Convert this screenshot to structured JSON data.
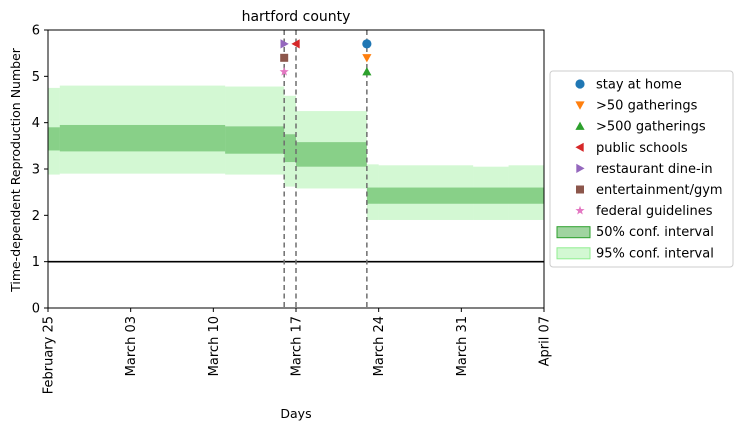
{
  "chart_data": {
    "type": "line",
    "title": "hartford county",
    "xlabel": "Days",
    "ylabel": "Time-dependent Reproduction Number",
    "x_ticks": [
      {
        "day": 0,
        "label": "February 25"
      },
      {
        "day": 7,
        "label": "March 03"
      },
      {
        "day": 14,
        "label": "March 10"
      },
      {
        "day": 21,
        "label": "March 17"
      },
      {
        "day": 28,
        "label": "March 24"
      },
      {
        "day": 35,
        "label": "March 31"
      },
      {
        "day": 42,
        "label": "April 07"
      }
    ],
    "xlim": [
      0,
      42
    ],
    "ylim": [
      0,
      6
    ],
    "y_ticks": [
      0,
      1,
      2,
      3,
      4,
      5,
      6
    ],
    "reference_line": {
      "y": 1,
      "color": "#000000"
    },
    "ci50": {
      "label": "50% conf. interval",
      "color": "#2ca02c",
      "segments": [
        {
          "x0": 0,
          "x1": 1,
          "lo": 3.4,
          "hi": 3.9
        },
        {
          "x0": 1,
          "x1": 15,
          "lo": 3.38,
          "hi": 3.95
        },
        {
          "x0": 15,
          "x1": 20,
          "lo": 3.33,
          "hi": 3.92
        },
        {
          "x0": 20,
          "x1": 21,
          "lo": 3.15,
          "hi": 3.75
        },
        {
          "x0": 21,
          "x1": 27,
          "lo": 3.05,
          "hi": 3.58
        },
        {
          "x0": 27,
          "x1": 42,
          "lo": 2.25,
          "hi": 2.6
        }
      ]
    },
    "ci95": {
      "label": "95% conf. interval",
      "color": "#90ee90",
      "segments": [
        {
          "x0": 0,
          "x1": 1,
          "lo": 2.88,
          "hi": 4.75
        },
        {
          "x0": 1,
          "x1": 15,
          "lo": 2.9,
          "hi": 4.8
        },
        {
          "x0": 15,
          "x1": 20,
          "lo": 2.88,
          "hi": 4.78
        },
        {
          "x0": 20,
          "x1": 21,
          "lo": 2.62,
          "hi": 4.58
        },
        {
          "x0": 21,
          "x1": 27,
          "lo": 2.58,
          "hi": 4.25
        },
        {
          "x0": 27,
          "x1": 28,
          "lo": 1.9,
          "hi": 3.1
        },
        {
          "x0": 28,
          "x1": 36,
          "lo": 1.9,
          "hi": 3.08
        },
        {
          "x0": 36,
          "x1": 39,
          "lo": 1.9,
          "hi": 3.05
        },
        {
          "x0": 39,
          "x1": 42,
          "lo": 1.9,
          "hi": 3.08
        }
      ]
    },
    "vlines": [
      20,
      21,
      27
    ],
    "interventions": [
      {
        "name": "stay at home",
        "x": 27,
        "y": 5.7,
        "marker": "circle",
        "color": "#1f77b4"
      },
      {
        "name": ">50 gatherings",
        "x": 27,
        "y": 5.4,
        "marker": "triangle-down",
        "color": "#ff7f0e"
      },
      {
        "name": ">500 gatherings",
        "x": 27,
        "y": 5.1,
        "marker": "triangle-up",
        "color": "#2ca02c"
      },
      {
        "name": "public schools",
        "x": 21,
        "y": 5.7,
        "marker": "triangle-left",
        "color": "#d62728"
      },
      {
        "name": "restaurant dine-in",
        "x": 20,
        "y": 5.7,
        "marker": "triangle-right",
        "color": "#9467bd"
      },
      {
        "name": "entertainment/gym",
        "x": 20,
        "y": 5.4,
        "marker": "square",
        "color": "#8c564b"
      },
      {
        "name": "federal guidelines",
        "x": 20,
        "y": 5.1,
        "marker": "star",
        "color": "#e377c2"
      }
    ],
    "legend_position": "right"
  }
}
